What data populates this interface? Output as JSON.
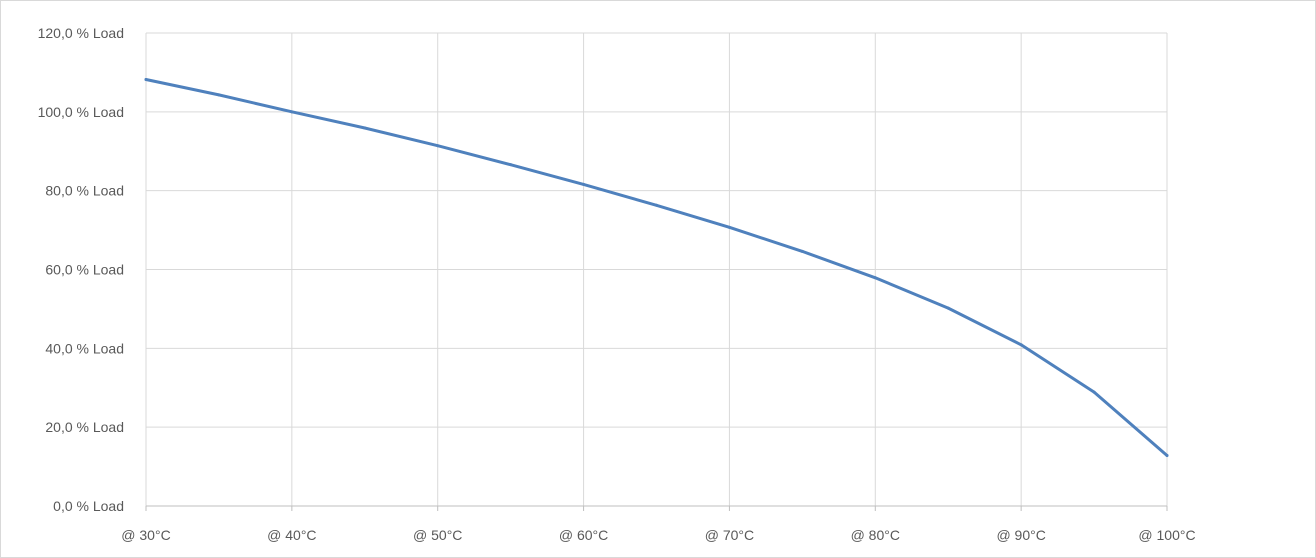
{
  "chart_data": {
    "type": "line",
    "title": "",
    "xlabel": "",
    "ylabel": "",
    "categories": [
      "@ 30°C",
      "@ 35°C",
      "@ 40°C",
      "@ 45°C",
      "@ 50°C",
      "@ 55°C",
      "@ 60°C",
      "@ 65°C",
      "@ 70°C",
      "@ 75°C",
      "@ 80°C",
      "@ 85°C",
      "@ 90°C",
      "@ 95°C",
      "@ 100°C"
    ],
    "x_tick_labels": [
      "@ 30°C",
      "@ 40°C",
      "@ 50°C",
      "@ 60°C",
      "@ 70°C",
      "@ 80°C",
      "@ 90°C",
      "@ 100°C"
    ],
    "y_tick_labels": [
      "0,0 % Load",
      "20,0 % Load",
      "40,0 % Load",
      "60,0 % Load",
      "80,0 % Load",
      "100,0 % Load",
      "120,0 % Load"
    ],
    "y_ticks": [
      0,
      20,
      40,
      60,
      80,
      100,
      120
    ],
    "ylim": [
      0,
      120
    ],
    "grid": true,
    "legend": "none",
    "line_color": "#4f81bd",
    "series": [
      {
        "values": [
          108.2,
          104.3,
          100.0,
          95.9,
          91.4,
          86.6,
          81.6,
          76.3,
          70.7,
          64.6,
          57.9,
          50.2,
          40.9,
          28.9,
          12.8
        ]
      }
    ]
  }
}
